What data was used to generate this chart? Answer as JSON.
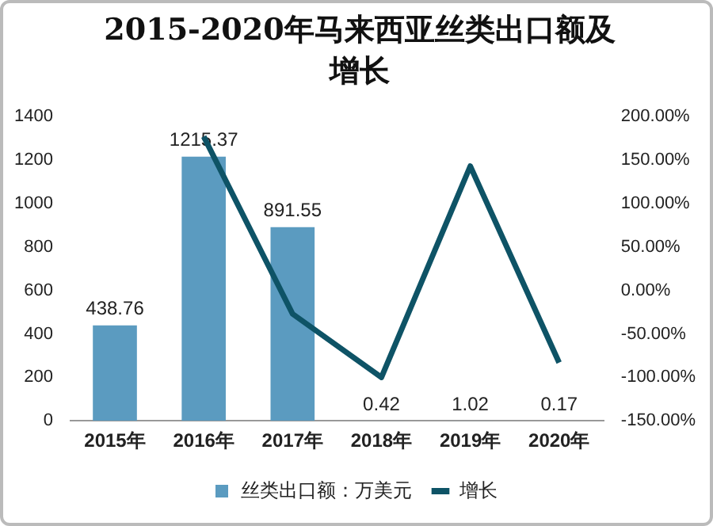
{
  "chart_data": {
    "type": "bar",
    "title": "2015-2020年马来西亚丝类出口额及增长",
    "categories": [
      "2015年",
      "2016年",
      "2017年",
      "2018年",
      "2019年",
      "2020年"
    ],
    "series": [
      {
        "name": "丝类出口额：万美元",
        "color": "#5b9bc0",
        "values": [
          438.76,
          1215.37,
          891.55,
          0.42,
          1.02,
          0.17
        ],
        "value_labels": [
          "438.76",
          "1215.37",
          "891.55",
          "0.42",
          "1.02",
          "0.17"
        ]
      },
      {
        "name": "增长",
        "type": "line",
        "axis": "y2",
        "color": "#0e5366",
        "values": [
          null,
          177,
          -27,
          -100,
          143,
          -83
        ]
      }
    ],
    "ylim": [
      0,
      1400
    ],
    "yticks": [
      0,
      200,
      400,
      600,
      800,
      1000,
      1200,
      1400
    ],
    "y2lim": [
      -150,
      200
    ],
    "y2ticks": [
      {
        "value": -150,
        "label": "-150.00%"
      },
      {
        "value": -100,
        "label": "-100.00%"
      },
      {
        "value": -50,
        "label": "-50.00%"
      },
      {
        "value": 0,
        "label": "0.00%"
      },
      {
        "value": 50,
        "label": "50.00%"
      },
      {
        "value": 100,
        "label": "100.00%"
      },
      {
        "value": 150,
        "label": "150.00%"
      },
      {
        "value": 200,
        "label": "200.00%"
      }
    ],
    "grid": false,
    "legend": "bottom",
    "marker": "none"
  }
}
